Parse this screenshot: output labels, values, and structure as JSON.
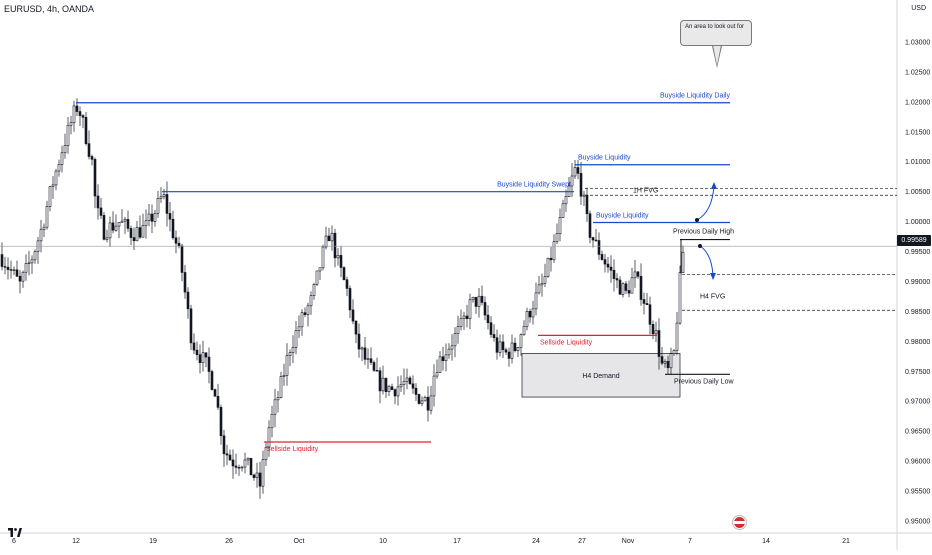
{
  "symbol": "EURUSD, 4h, OANDA",
  "currency": "USD",
  "current_price": "0.99589",
  "callout_text": "An area to look out for",
  "colors": {
    "blue": "#1848cc",
    "red": "#e0242c",
    "dark": "#131722",
    "up": "#ffffff",
    "down": "#131722",
    "demand_fill": "#e6e6e8",
    "grid": "#ffffff"
  },
  "icons": [
    "economic-event-flag-icon",
    "tradingview-logo-icon"
  ],
  "chart_data": {
    "type": "candlestick",
    "y_axis": {
      "ticks": [
        "1.03000",
        "1.02500",
        "1.02000",
        "1.01500",
        "1.01000",
        "1.00500",
        "1.00000",
        "0.99500",
        "0.99000",
        "0.98500",
        "0.98000",
        "0.97500",
        "0.97000",
        "0.96500",
        "0.96000",
        "0.95500",
        "0.95000"
      ],
      "range": [
        0.9495,
        1.0325
      ]
    },
    "x_axis": {
      "ticks": [
        "6",
        "12",
        "19",
        "26",
        "Oct",
        "10",
        "17",
        "24",
        "27",
        "Nov",
        "7",
        "14",
        "21"
      ]
    },
    "annotations": [
      {
        "kind": "level",
        "label": "Buyside Liquidity Daily",
        "color": "blue",
        "price": 1.01985
      },
      {
        "kind": "level",
        "label": "Buyside Liquidity",
        "color": "blue",
        "price": 1.0095
      },
      {
        "kind": "level",
        "label": "Buyside Liquidity Swept",
        "color": "blue",
        "price": 1.005
      },
      {
        "kind": "level",
        "label": "Buyside Liquidity",
        "color": "blue",
        "price": 0.99985
      },
      {
        "kind": "level",
        "label": "Previous Daily High",
        "color": "dark",
        "price": 0.997
      },
      {
        "kind": "level",
        "label": "Sellside Liquidity",
        "color": "red",
        "price": 0.981
      },
      {
        "kind": "level",
        "label": "Previous Daily Low",
        "color": "dark",
        "price": 0.9745
      },
      {
        "kind": "level",
        "label": "Sellside Liquidity",
        "color": "red",
        "price": 0.9632
      },
      {
        "kind": "zone",
        "label": "H4 Demand",
        "top": 0.978,
        "bottom": 0.9707
      },
      {
        "kind": "dashed",
        "label": "1H FVG",
        "prices": [
          1.0055,
          1.0044
        ]
      },
      {
        "kind": "dashed",
        "label": "H4 FVG",
        "prices": [
          0.9912
        ]
      },
      {
        "kind": "dashed",
        "label": "",
        "prices": [
          0.9852
        ]
      }
    ]
  }
}
